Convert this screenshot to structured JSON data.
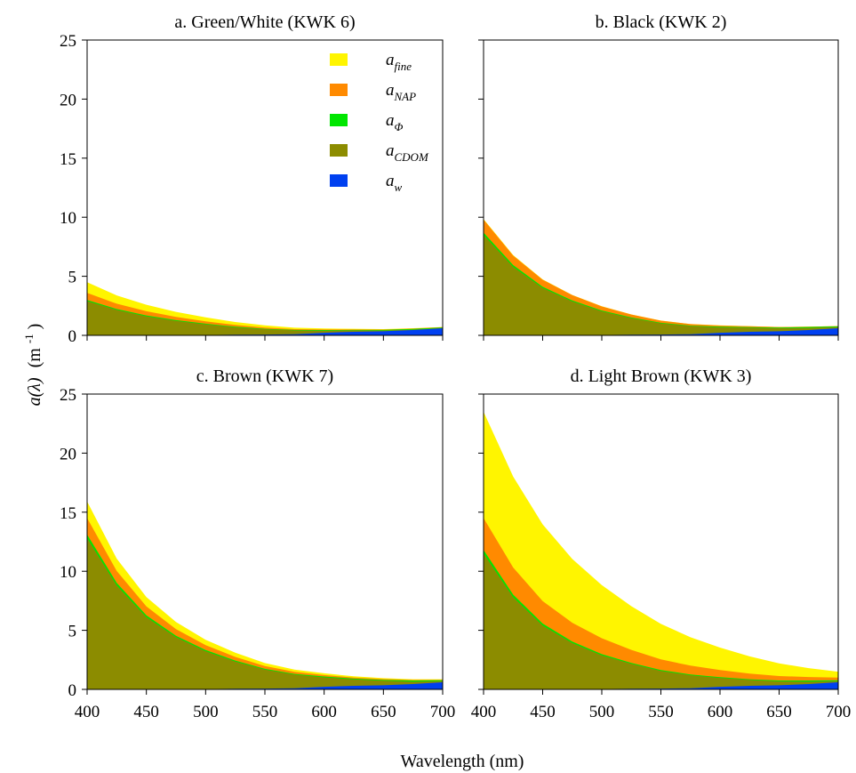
{
  "figure": {
    "xlabel": "Wavelength (nm)",
    "ylabel_main": "a(λ)",
    "ylabel_unit": "(m",
    "ylabel_exp": "-1",
    "ylabel_close": ")"
  },
  "legend": {
    "placement": "upper-center of panel a",
    "items": [
      {
        "base": "a",
        "sub": "fine",
        "color": "#FFF500"
      },
      {
        "base": "a",
        "sub": "NAP",
        "color": "#FF8A00"
      },
      {
        "base": "a",
        "sub": "Φ",
        "color": "#00E600"
      },
      {
        "base": "a",
        "sub": "CDOM",
        "color": "#8C8C00"
      },
      {
        "base": "a",
        "sub": "w",
        "color": "#0040F0"
      }
    ]
  },
  "chart_data": [
    {
      "type": "area",
      "stacked": true,
      "title": "a. Green/White (KWK 6)",
      "x": [
        400,
        425,
        450,
        475,
        500,
        525,
        550,
        575,
        600,
        625,
        650,
        675,
        700
      ],
      "xlim": [
        400,
        700
      ],
      "ylim": [
        0,
        25
      ],
      "xticks": [
        "400",
        "450",
        "500",
        "550",
        "600",
        "650",
        "700"
      ],
      "yticks": [
        "0",
        "5",
        "10",
        "15",
        "20",
        "25"
      ],
      "series": [
        {
          "name": "a_w",
          "values": [
            0.0,
            0.0,
            0.01,
            0.02,
            0.03,
            0.06,
            0.07,
            0.1,
            0.22,
            0.3,
            0.35,
            0.45,
            0.6
          ]
        },
        {
          "name": "a_CDOM",
          "values": [
            2.9,
            2.15,
            1.6,
            1.2,
            0.9,
            0.62,
            0.45,
            0.32,
            0.18,
            0.12,
            0.06,
            0.03,
            0.02
          ]
        },
        {
          "name": "a_Φ",
          "values": [
            0.1,
            0.08,
            0.08,
            0.07,
            0.06,
            0.05,
            0.04,
            0.04,
            0.05,
            0.04,
            0.05,
            0.07,
            0.05
          ]
        },
        {
          "name": "a_NAP",
          "values": [
            0.6,
            0.45,
            0.35,
            0.27,
            0.2,
            0.15,
            0.1,
            0.07,
            0.05,
            0.04,
            0.03,
            0.02,
            0.02
          ]
        },
        {
          "name": "a_fine",
          "values": [
            0.9,
            0.7,
            0.55,
            0.43,
            0.33,
            0.25,
            0.18,
            0.12,
            0.08,
            0.06,
            0.04,
            0.03,
            0.02
          ]
        }
      ]
    },
    {
      "type": "area",
      "stacked": true,
      "title": "b. Black (KWK 2)",
      "x": [
        400,
        425,
        450,
        475,
        500,
        525,
        550,
        575,
        600,
        625,
        650,
        675,
        700
      ],
      "xlim": [
        400,
        700
      ],
      "ylim": [
        0,
        25
      ],
      "xticks": [
        "400",
        "450",
        "500",
        "550",
        "600",
        "650",
        "700"
      ],
      "yticks": [],
      "series": [
        {
          "name": "a_w",
          "values": [
            0.0,
            0.0,
            0.01,
            0.02,
            0.03,
            0.06,
            0.07,
            0.1,
            0.22,
            0.3,
            0.35,
            0.45,
            0.6
          ]
        },
        {
          "name": "a_CDOM",
          "values": [
            8.5,
            5.8,
            4.0,
            2.85,
            2.0,
            1.4,
            0.95,
            0.68,
            0.45,
            0.35,
            0.25,
            0.17,
            0.1
          ]
        },
        {
          "name": "a_Φ",
          "values": [
            0.2,
            0.15,
            0.1,
            0.08,
            0.07,
            0.05,
            0.04,
            0.04,
            0.06,
            0.05,
            0.06,
            0.09,
            0.06
          ]
        },
        {
          "name": "a_NAP",
          "values": [
            1.1,
            0.8,
            0.6,
            0.45,
            0.35,
            0.25,
            0.18,
            0.13,
            0.1,
            0.07,
            0.05,
            0.03,
            0.02
          ]
        },
        {
          "name": "a_fine",
          "values": [
            0.05,
            0.04,
            0.03,
            0.02,
            0.02,
            0.01,
            0.01,
            0.01,
            0.01,
            0.0,
            0.0,
            0.0,
            0.0
          ]
        }
      ]
    },
    {
      "type": "area",
      "stacked": true,
      "title": "c. Brown (KWK 7)",
      "x": [
        400,
        425,
        450,
        475,
        500,
        525,
        550,
        575,
        600,
        625,
        650,
        675,
        700
      ],
      "xlim": [
        400,
        700
      ],
      "ylim": [
        0,
        25
      ],
      "xticks": [
        "400",
        "450",
        "500",
        "550",
        "600",
        "650",
        "700"
      ],
      "yticks": [
        "0",
        "5",
        "10",
        "15",
        "20",
        "25"
      ],
      "series": [
        {
          "name": "a_w",
          "values": [
            0.0,
            0.0,
            0.01,
            0.02,
            0.03,
            0.06,
            0.07,
            0.1,
            0.22,
            0.3,
            0.35,
            0.45,
            0.6
          ]
        },
        {
          "name": "a_CDOM",
          "values": [
            12.8,
            8.8,
            6.1,
            4.4,
            3.2,
            2.3,
            1.6,
            1.15,
            0.8,
            0.55,
            0.38,
            0.2,
            0.1
          ]
        },
        {
          "name": "a_Φ",
          "values": [
            0.3,
            0.22,
            0.16,
            0.12,
            0.1,
            0.08,
            0.07,
            0.06,
            0.07,
            0.06,
            0.07,
            0.1,
            0.07
          ]
        },
        {
          "name": "a_NAP",
          "values": [
            1.4,
            1.0,
            0.75,
            0.56,
            0.42,
            0.31,
            0.23,
            0.17,
            0.12,
            0.09,
            0.07,
            0.05,
            0.04
          ]
        },
        {
          "name": "a_fine",
          "values": [
            1.4,
            1.05,
            0.8,
            0.6,
            0.45,
            0.35,
            0.26,
            0.2,
            0.15,
            0.11,
            0.08,
            0.06,
            0.05
          ]
        }
      ]
    },
    {
      "type": "area",
      "stacked": true,
      "title": "d. Light Brown (KWK 3)",
      "x": [
        400,
        425,
        450,
        475,
        500,
        525,
        550,
        575,
        600,
        625,
        650,
        675,
        700
      ],
      "xlim": [
        400,
        700
      ],
      "ylim": [
        0,
        25
      ],
      "xticks": [
        "400",
        "450",
        "500",
        "550",
        "600",
        "650",
        "700"
      ],
      "yticks": [],
      "series": [
        {
          "name": "a_w",
          "values": [
            0.0,
            0.0,
            0.01,
            0.02,
            0.03,
            0.06,
            0.07,
            0.1,
            0.22,
            0.3,
            0.35,
            0.45,
            0.6
          ]
        },
        {
          "name": "a_CDOM",
          "values": [
            11.5,
            7.8,
            5.4,
            3.9,
            2.85,
            2.1,
            1.5,
            1.1,
            0.75,
            0.5,
            0.33,
            0.2,
            0.1
          ]
        },
        {
          "name": "a_Φ",
          "values": [
            0.3,
            0.22,
            0.16,
            0.12,
            0.1,
            0.08,
            0.07,
            0.06,
            0.07,
            0.06,
            0.07,
            0.1,
            0.07
          ]
        },
        {
          "name": "a_NAP",
          "values": [
            2.7,
            2.3,
            1.9,
            1.6,
            1.35,
            1.1,
            0.9,
            0.75,
            0.6,
            0.48,
            0.38,
            0.3,
            0.23
          ]
        },
        {
          "name": "a_fine",
          "values": [
            9.0,
            7.7,
            6.5,
            5.4,
            4.5,
            3.7,
            3.0,
            2.4,
            1.9,
            1.45,
            1.07,
            0.75,
            0.5
          ]
        }
      ]
    }
  ]
}
